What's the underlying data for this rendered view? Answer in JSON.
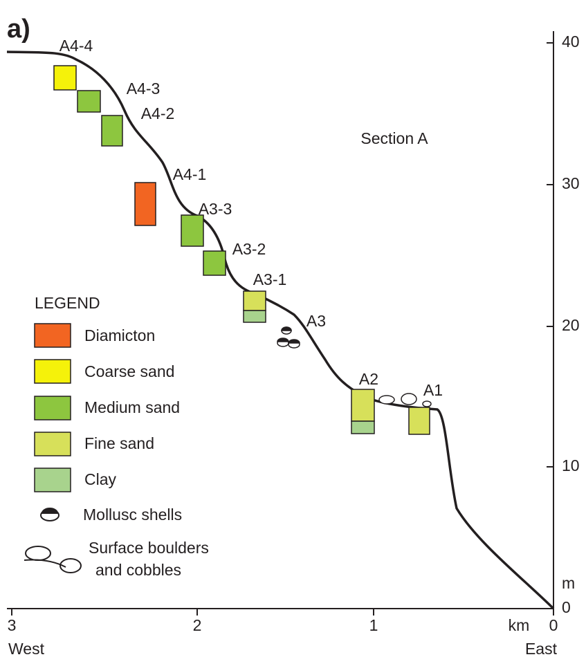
{
  "header": {
    "panel": "a)",
    "section": "Section A"
  },
  "samples": [
    "A4-4",
    "A4-3",
    "A4-2",
    "A4-1",
    "A3-3",
    "A3-2",
    "A3-1",
    "A3",
    "A2",
    "A1"
  ],
  "legend": {
    "title": "LEGEND",
    "items": [
      "Diamicton",
      "Coarse sand",
      "Medium sand",
      "Fine sand",
      "Clay"
    ],
    "symbols": [
      "Mollusc shells",
      "Surface boulders",
      "and cobbles"
    ]
  },
  "y_axis": {
    "unit": "m",
    "ticks": [
      "0",
      "10",
      "20",
      "30",
      "40"
    ]
  },
  "x_axis": {
    "unit": "km",
    "ticks": [
      "3",
      "2",
      "1",
      "0"
    ],
    "left": "West",
    "right": "East"
  }
}
